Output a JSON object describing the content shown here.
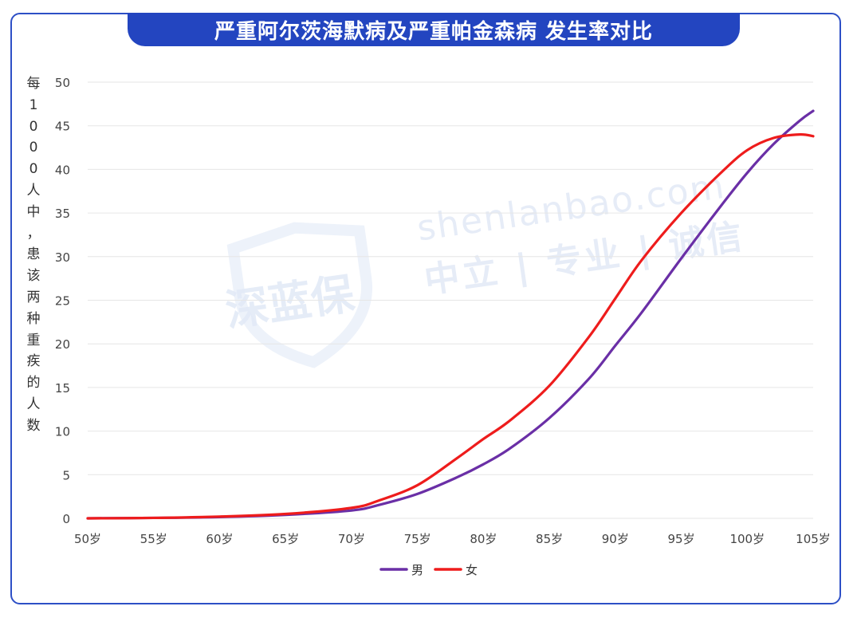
{
  "title": "严重阿尔茨海默病及严重帕金森病 发生率对比",
  "watermark": {
    "logo_text": "深蓝保",
    "url_text": "shenlanbao.com",
    "slogan_text": "中立 | 专业 | 诚信"
  },
  "colors": {
    "title_bg": "#2345c0",
    "frame": "#2d4fc6",
    "male": "#6a2fa6",
    "female": "#ee1c1c",
    "grid": "#e6e6e6"
  },
  "chart_data": {
    "type": "line",
    "title": "严重阿尔茨海默病及严重帕金森病 发生率对比",
    "xlabel": "",
    "ylabel": "每1000人中，患该两种重疾的人数",
    "ylabel_chars": [
      "每",
      "1",
      "0",
      "0",
      "0",
      "人",
      "中",
      "，",
      "患",
      "该",
      "两",
      "种",
      "重",
      "疾",
      "的",
      "人",
      "数"
    ],
    "x_tick_labels": [
      "50岁",
      "55岁",
      "60岁",
      "65岁",
      "70岁",
      "75岁",
      "80岁",
      "85岁",
      "90岁",
      "95岁",
      "100岁",
      "105岁"
    ],
    "y_ticks": [
      0,
      5,
      10,
      15,
      20,
      25,
      30,
      35,
      40,
      45,
      50
    ],
    "xlim": [
      50,
      105
    ],
    "ylim": [
      0,
      50
    ],
    "grid": true,
    "legend_position": "bottom",
    "series": [
      {
        "name": "男",
        "color": "#6a2fa6",
        "x": [
          50,
          55,
          60,
          65,
          70,
          72,
          75,
          78,
          80,
          82,
          85,
          88,
          90,
          92,
          95,
          98,
          100,
          102,
          104,
          105
        ],
        "values": [
          0.0,
          0.05,
          0.15,
          0.4,
          0.9,
          1.5,
          2.8,
          4.7,
          6.2,
          8.0,
          11.5,
          16.0,
          19.8,
          23.6,
          29.8,
          35.8,
          39.6,
          42.9,
          45.6,
          46.7
        ]
      },
      {
        "name": "女",
        "color": "#ee1c1c",
        "x": [
          50,
          55,
          60,
          65,
          70,
          72,
          75,
          78,
          80,
          82,
          85,
          88,
          90,
          92,
          95,
          98,
          100,
          102,
          104,
          105
        ],
        "values": [
          0.0,
          0.05,
          0.2,
          0.5,
          1.2,
          2.0,
          3.8,
          6.9,
          9.1,
          11.2,
          15.2,
          20.8,
          25.2,
          29.6,
          35.0,
          39.6,
          42.2,
          43.6,
          44.0,
          43.8
        ]
      }
    ]
  }
}
